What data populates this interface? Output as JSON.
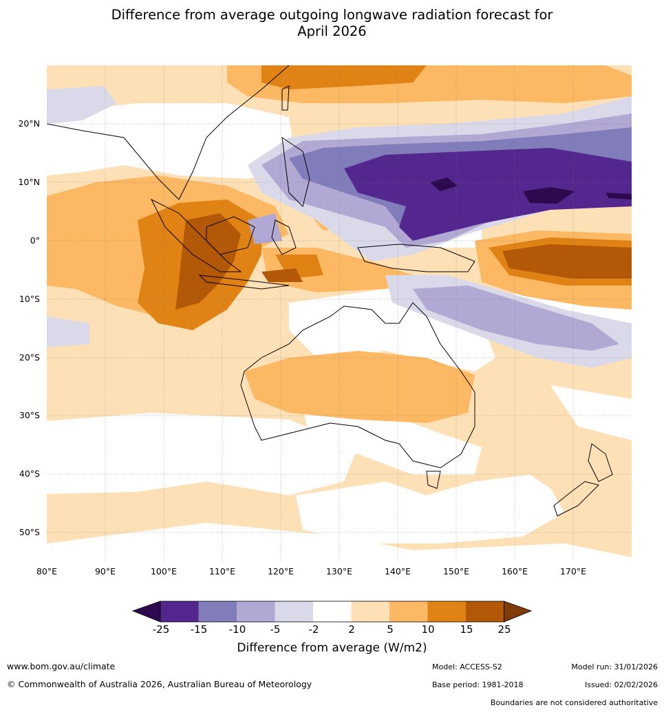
{
  "title": {
    "line1": "Difference from average outgoing longwave radiation forecast for",
    "line2": "April 2026"
  },
  "map": {
    "lat_labels": [
      "20°N",
      "10°N",
      "0°",
      "10°S",
      "20°S",
      "30°S",
      "40°S",
      "50°S"
    ],
    "lon_labels": [
      "80°E",
      "90°E",
      "100°E",
      "110°E",
      "120°E",
      "130°E",
      "140°E",
      "150°E",
      "160°E",
      "170°E"
    ],
    "extent": {
      "lon_min": 80,
      "lon_max": 180,
      "lat_min": -55,
      "lat_max": 30
    }
  },
  "colorbar": {
    "ticks": [
      "-25",
      "-15",
      "-10",
      "-5",
      "-2",
      "2",
      "5",
      "10",
      "15",
      "25"
    ],
    "colors": [
      "#2d0a4e",
      "#54278f",
      "#807dba",
      "#b1a9d3",
      "#d9d9ea",
      "#ffffff",
      "#fee0b6",
      "#fdb863",
      "#e08214",
      "#b35806",
      "#7f3b08"
    ],
    "label": "Difference from average (W/m2)"
  },
  "footer": {
    "website": "www.bom.gov.au/climate",
    "copyright": "© Commonwealth of Australia 2026, Australian Bureau of Meteorology",
    "model": "Model: ACCESS-S2",
    "base_period": "Base period: 1981-2018",
    "model_run": "Model run: 31/01/2026",
    "issued": "Issued: 02/02/2026",
    "disclaimer": "Boundaries are not considered authoritative"
  }
}
